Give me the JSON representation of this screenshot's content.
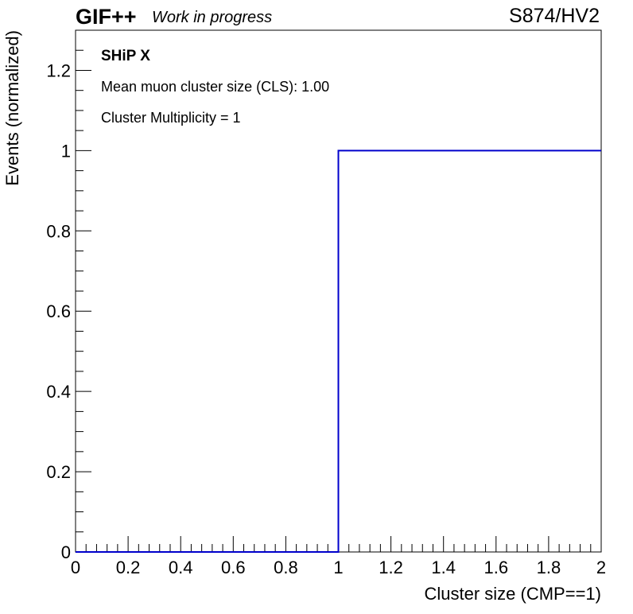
{
  "header": {
    "brand": "GIF++",
    "status": "Work in progress",
    "run_label": "S874/HV2"
  },
  "chart_data": {
    "type": "line",
    "title": "",
    "xlabel": "Cluster size (CMP==1)",
    "ylabel": "Events (normalized)",
    "xlim": [
      0,
      2
    ],
    "ylim": [
      0,
      1.3
    ],
    "x_ticks": [
      "0",
      "0.2",
      "0.4",
      "0.6",
      "0.8",
      "1",
      "1.2",
      "1.4",
      "1.6",
      "1.8",
      "2"
    ],
    "y_ticks": [
      "0",
      "0.2",
      "0.4",
      "0.6",
      "0.8",
      "1",
      "1.2"
    ],
    "grid": false,
    "series": [
      {
        "step": "post",
        "color": "#0000cc",
        "x": [
          0,
          1,
          2
        ],
        "y": [
          0,
          1,
          1
        ]
      }
    ],
    "annotations": [
      "SHiP X",
      "Mean muon cluster size (CLS): 1.00",
      "Cluster Multiplicity = 1"
    ]
  }
}
